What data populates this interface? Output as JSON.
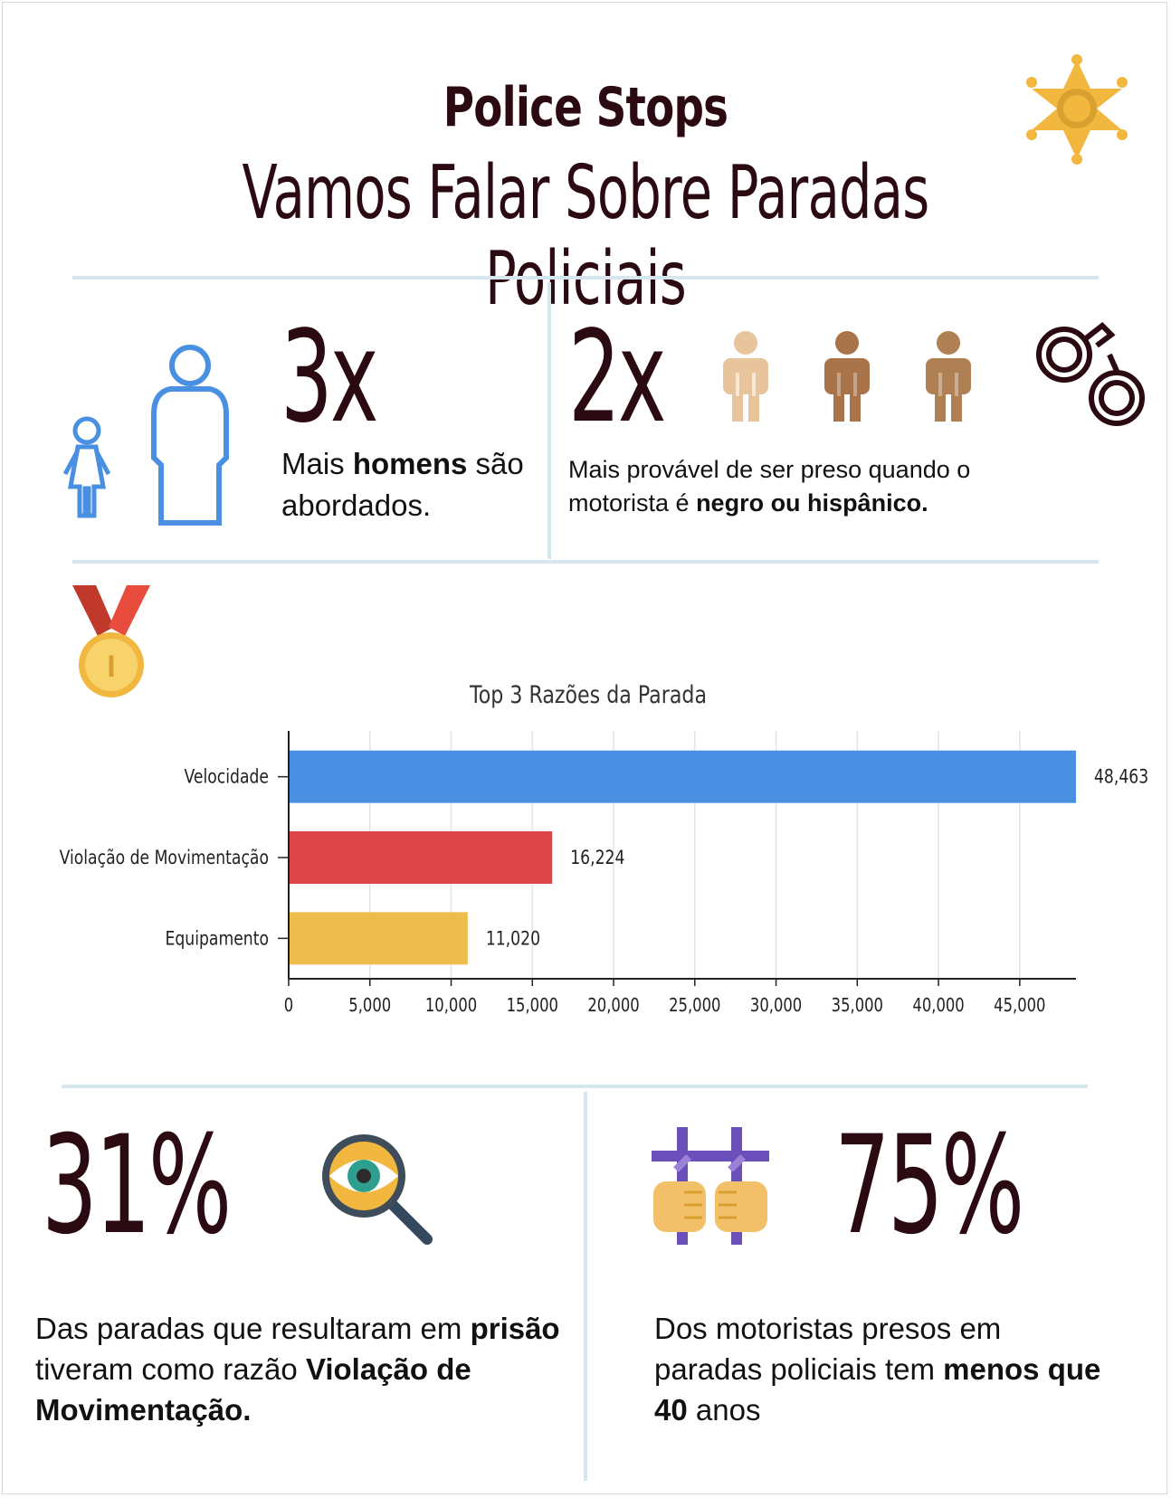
{
  "header": {
    "title": "Police Stops",
    "subtitle": "Vamos Falar Sobre Paradas Policiais"
  },
  "stat_men": {
    "value": "3x",
    "text_pre": "Mais ",
    "text_bold": "homens",
    "text_post": " são abordados."
  },
  "stat_arrest": {
    "value": "2x",
    "text_pre": "Mais provável de ser preso quando o motorista é ",
    "text_bold": "negro ou hispânico."
  },
  "stat_prison_reason": {
    "value": "31%",
    "text_pre": "Das paradas que resultaram em ",
    "text_bold1": "prisão",
    "text_mid": " tiveram como razão ",
    "text_bold2": "Violação de Movimentação."
  },
  "stat_age": {
    "value": "75%",
    "text_pre": "Dos motoristas presos em paradas policiais tem ",
    "text_bold": "menos que 40",
    "text_post": " anos"
  },
  "icons": [
    "sheriff-star-icon",
    "girl-icon",
    "man-outline-icon",
    "person-light-icon",
    "person-medium-icon",
    "person-dark-icon",
    "handcuffs-icon",
    "medal-icon",
    "magnifier-eye-icon",
    "jail-bars-hands-icon"
  ],
  "colors": {
    "title": "#2b0a12",
    "bar_velocidade": "#4a90e2",
    "bar_violacao": "#db4548",
    "bar_equipamento": "#eebb4d",
    "divider": "#d6e6ee"
  },
  "chart_data": {
    "type": "bar",
    "orientation": "horizontal",
    "title": "Top 3 Razões da Parada",
    "categories": [
      "Velocidade",
      "Violação de Movimentação",
      "Equipamento"
    ],
    "values": [
      48463,
      16224,
      11020
    ],
    "value_labels": [
      "48,463",
      "16,224",
      "11,020"
    ],
    "xlim": [
      0,
      48463
    ],
    "xticks": [
      0,
      5000,
      10000,
      15000,
      20000,
      25000,
      30000,
      35000,
      40000,
      45000
    ],
    "xtick_labels": [
      "0",
      "5,000",
      "10,000",
      "15,000",
      "20,000",
      "25,000",
      "30,000",
      "35,000",
      "40,000",
      "45,000"
    ],
    "grid": "vertical"
  }
}
